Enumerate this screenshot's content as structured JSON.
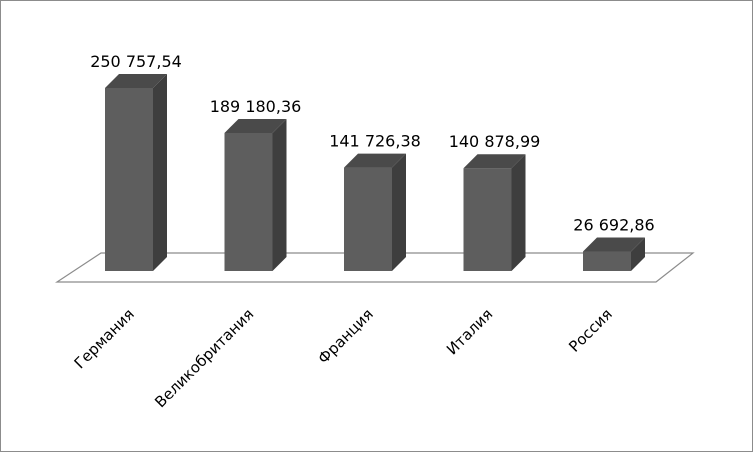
{
  "chart_data": {
    "type": "bar",
    "style": "3d-column",
    "categories": [
      "Германия",
      "Великобритания",
      "Франция",
      "Италия",
      "Россия"
    ],
    "values": [
      250757.54,
      189180.36,
      141726.38,
      140878.99,
      26692.86
    ],
    "value_labels": [
      "250 757,54",
      "189 180,36",
      "141 726,38",
      "140 878,99",
      "26 692,86"
    ],
    "ylim": [
      0,
      250757.54
    ],
    "grid": false,
    "legend": "none",
    "colors": {
      "bar_front": "#5e5e5e",
      "bar_side": "#3e3e3e",
      "bar_top": "#4a4a4a",
      "floor_stroke": "#8c8c8c",
      "frame_border": "#8c8c8c"
    }
  }
}
